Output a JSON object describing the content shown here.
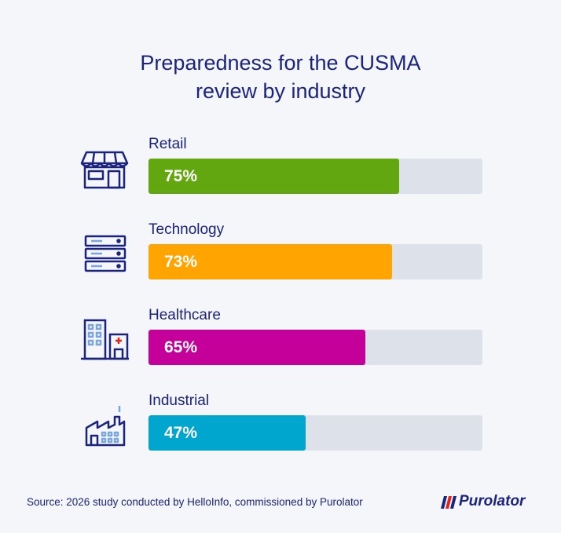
{
  "title_line1": "Preparedness for the CUSMA",
  "title_line2": "review by industry",
  "chart_data": {
    "type": "bar",
    "orientation": "horizontal",
    "title": "Preparedness for the CUSMA review by industry",
    "categories": [
      "Retail",
      "Technology",
      "Healthcare",
      "Industrial"
    ],
    "values": [
      75,
      73,
      65,
      47
    ],
    "value_labels": [
      "75%",
      "73%",
      "65%",
      "47%"
    ],
    "xlim": [
      0,
      100
    ],
    "colors": [
      "#62a70f",
      "#ffa400",
      "#c5009a",
      "#00a6ce"
    ],
    "icons": [
      "store-icon",
      "server-icon",
      "hospital-icon",
      "factory-icon"
    ]
  },
  "source": "Source: 2026 study conducted by HelloInfo, commissioned by Purolator",
  "logo": {
    "text": "Purolator",
    "color": "#1a237e",
    "accent": "#e2231a"
  }
}
